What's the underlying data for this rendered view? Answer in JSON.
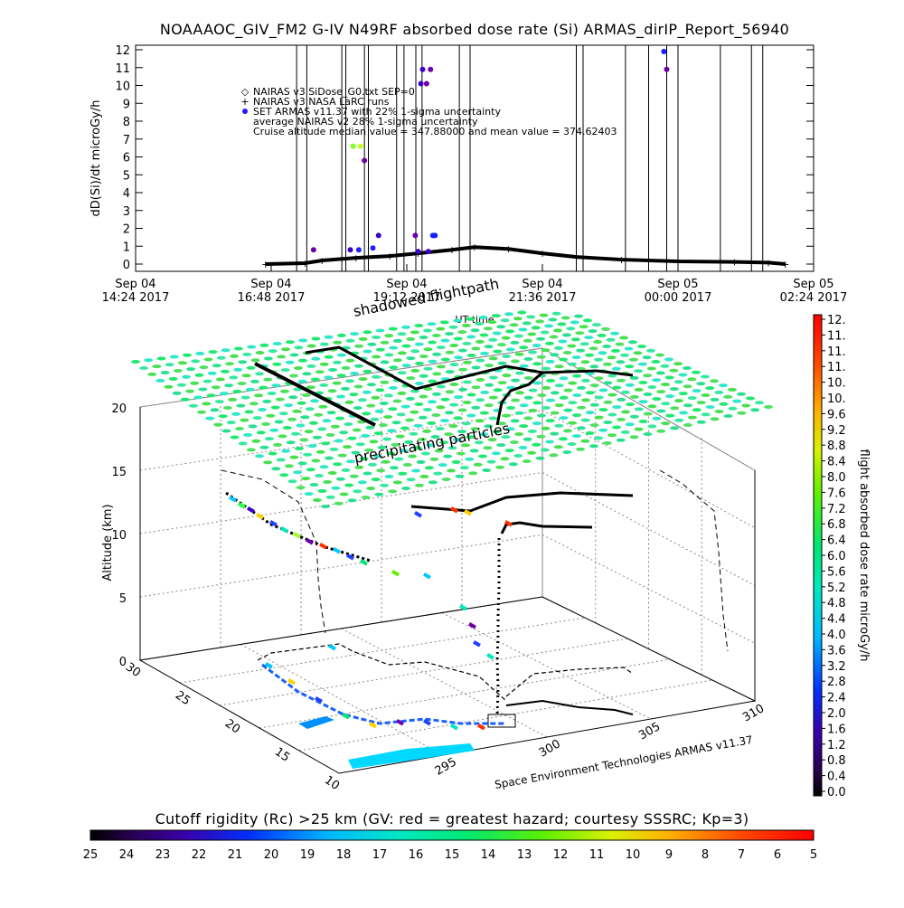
{
  "title": "NOAAAOC_GIV_FM2 G-IV   N49RF  absorbed dose rate (Si) ARMAS_dirIP_Report_56940",
  "colors": {
    "background": "#ffffff",
    "foreground": "#000000",
    "armas_points": "#1a1aff",
    "nairas_points": "#000000"
  },
  "chart_data": [
    {
      "type": "scatter",
      "name_key": "timeseries",
      "ylabel": "dD(Si)/dt microGy/h",
      "xlabel": "UT time",
      "ylim": [
        0,
        12
      ],
      "xlim_hours": [
        14.4,
        26.4
      ],
      "yticks": [
        "0",
        "1",
        "2",
        "3",
        "4",
        "5",
        "6",
        "7",
        "8",
        "9",
        "10",
        "11",
        "12"
      ],
      "xticks": [
        {
          "day": "Sep 04",
          "time": "14:24 2017"
        },
        {
          "day": "Sep 04",
          "time": "16:48 2017"
        },
        {
          "day": "Sep 04",
          "time": "19:12 2017"
        },
        {
          "day": "Sep 04",
          "time": "21:36 2017"
        },
        {
          "day": "Sep 05",
          "time": "00:00 2017"
        },
        {
          "day": "Sep 05",
          "time": "02:24 2017"
        }
      ],
      "legend": [
        {
          "symbol": "◇",
          "text": "NAIRAS v3 SiDose_G0.txt SEP=0"
        },
        {
          "symbol": "+",
          "text": "NAIRAS v3 NASA LaRC runs"
        },
        {
          "symbol": "●",
          "text": "SET ARMAS v11.37 with 22% 1-sigma uncertainty"
        },
        {
          "symbol": "",
          "text": "average NAIRAS v2 28% 1-sigma uncertainty"
        },
        {
          "symbol": "",
          "text": "Cruise altitude median value = 347.88000 and mean value = 374.62403"
        }
      ],
      "vertical_markers_hours": [
        17.25,
        17.43,
        18.05,
        18.12,
        18.45,
        18.52,
        19.02,
        19.15,
        19.36,
        19.47,
        20.13,
        20.32,
        22.2,
        22.32,
        23.07,
        23.48,
        23.8,
        24.0,
        24.75,
        25.3,
        25.5
      ],
      "armas_points": [
        {
          "t": 17.55,
          "v": 0.8
        },
        {
          "t": 18.2,
          "v": 0.8
        },
        {
          "t": 18.35,
          "v": 0.8
        },
        {
          "t": 18.25,
          "v": 6.6
        },
        {
          "t": 18.38,
          "v": 6.6
        },
        {
          "t": 18.45,
          "v": 5.8
        },
        {
          "t": 18.6,
          "v": 0.9
        },
        {
          "t": 18.7,
          "v": 1.6
        },
        {
          "t": 19.35,
          "v": 1.6
        },
        {
          "t": 19.45,
          "v": 10.1
        },
        {
          "t": 19.55,
          "v": 10.1
        },
        {
          "t": 19.48,
          "v": 10.9
        },
        {
          "t": 19.62,
          "v": 10.9
        },
        {
          "t": 19.66,
          "v": 1.6
        },
        {
          "t": 19.7,
          "v": 1.6
        },
        {
          "t": 19.58,
          "v": 0.7
        },
        {
          "t": 19.4,
          "v": 0.7
        },
        {
          "t": 23.75,
          "v": 11.9
        },
        {
          "t": 23.8,
          "v": 10.9
        }
      ],
      "nairas_curve": [
        {
          "t": 16.7,
          "v": 0.0
        },
        {
          "t": 17.4,
          "v": 0.05
        },
        {
          "t": 17.7,
          "v": 0.2
        },
        {
          "t": 18.3,
          "v": 0.35
        },
        {
          "t": 18.9,
          "v": 0.45
        },
        {
          "t": 19.4,
          "v": 0.6
        },
        {
          "t": 20.0,
          "v": 0.8
        },
        {
          "t": 20.4,
          "v": 0.95
        },
        {
          "t": 21.0,
          "v": 0.85
        },
        {
          "t": 21.6,
          "v": 0.6
        },
        {
          "t": 22.2,
          "v": 0.4
        },
        {
          "t": 23.0,
          "v": 0.25
        },
        {
          "t": 24.0,
          "v": 0.15
        },
        {
          "t": 25.0,
          "v": 0.12
        },
        {
          "t": 25.6,
          "v": 0.08
        },
        {
          "t": 25.9,
          "v": 0.0
        }
      ]
    },
    {
      "type": "scatter",
      "name_key": "3d-flightpath",
      "zlabel": "Altitude (km)",
      "zticks": [
        "0",
        "5",
        "10",
        "15",
        "20"
      ],
      "lat_ticks": [
        "10",
        "15",
        "20",
        "25",
        "30"
      ],
      "lon_ticks": [
        "295",
        "300",
        "305",
        "310"
      ],
      "annotations": {
        "shadowed_flightpath": "shadowed flightpath",
        "precipitating_particles": "precipitating particles",
        "credit": "Space Environment Technologies ARMAS v11.37"
      }
    },
    {
      "type": "heatmap",
      "name_key": "dose-colorbar",
      "label": "flight absorbed dose rate microGy/h",
      "ticks": [
        "12.",
        "11.",
        "11.",
        "11.",
        "10.",
        "10.",
        "9.6",
        "9.2",
        "8.8",
        "8.4",
        "8.0",
        "7.6",
        "7.2",
        "6.8",
        "6.4",
        "6.0",
        "5.6",
        "5.2",
        "4.8",
        "4.4",
        "4.0",
        "3.6",
        "3.2",
        "2.8",
        "2.4",
        "2.0",
        "1.6",
        "1.2",
        "0.8",
        "0.4",
        "0.0"
      ]
    },
    {
      "type": "heatmap",
      "name_key": "rigidity-colorbar",
      "label": "Cutoff rigidity (Rc) >25 km (GV: red = greatest hazard; courtesy SSSRC; Kp=3)",
      "ticks": [
        "25",
        "24",
        "23",
        "22",
        "21",
        "20",
        "19",
        "18",
        "17",
        "16",
        "15",
        "14",
        "13",
        "12",
        "11",
        "10",
        "9",
        "8",
        "7",
        "6",
        "5"
      ]
    }
  ]
}
